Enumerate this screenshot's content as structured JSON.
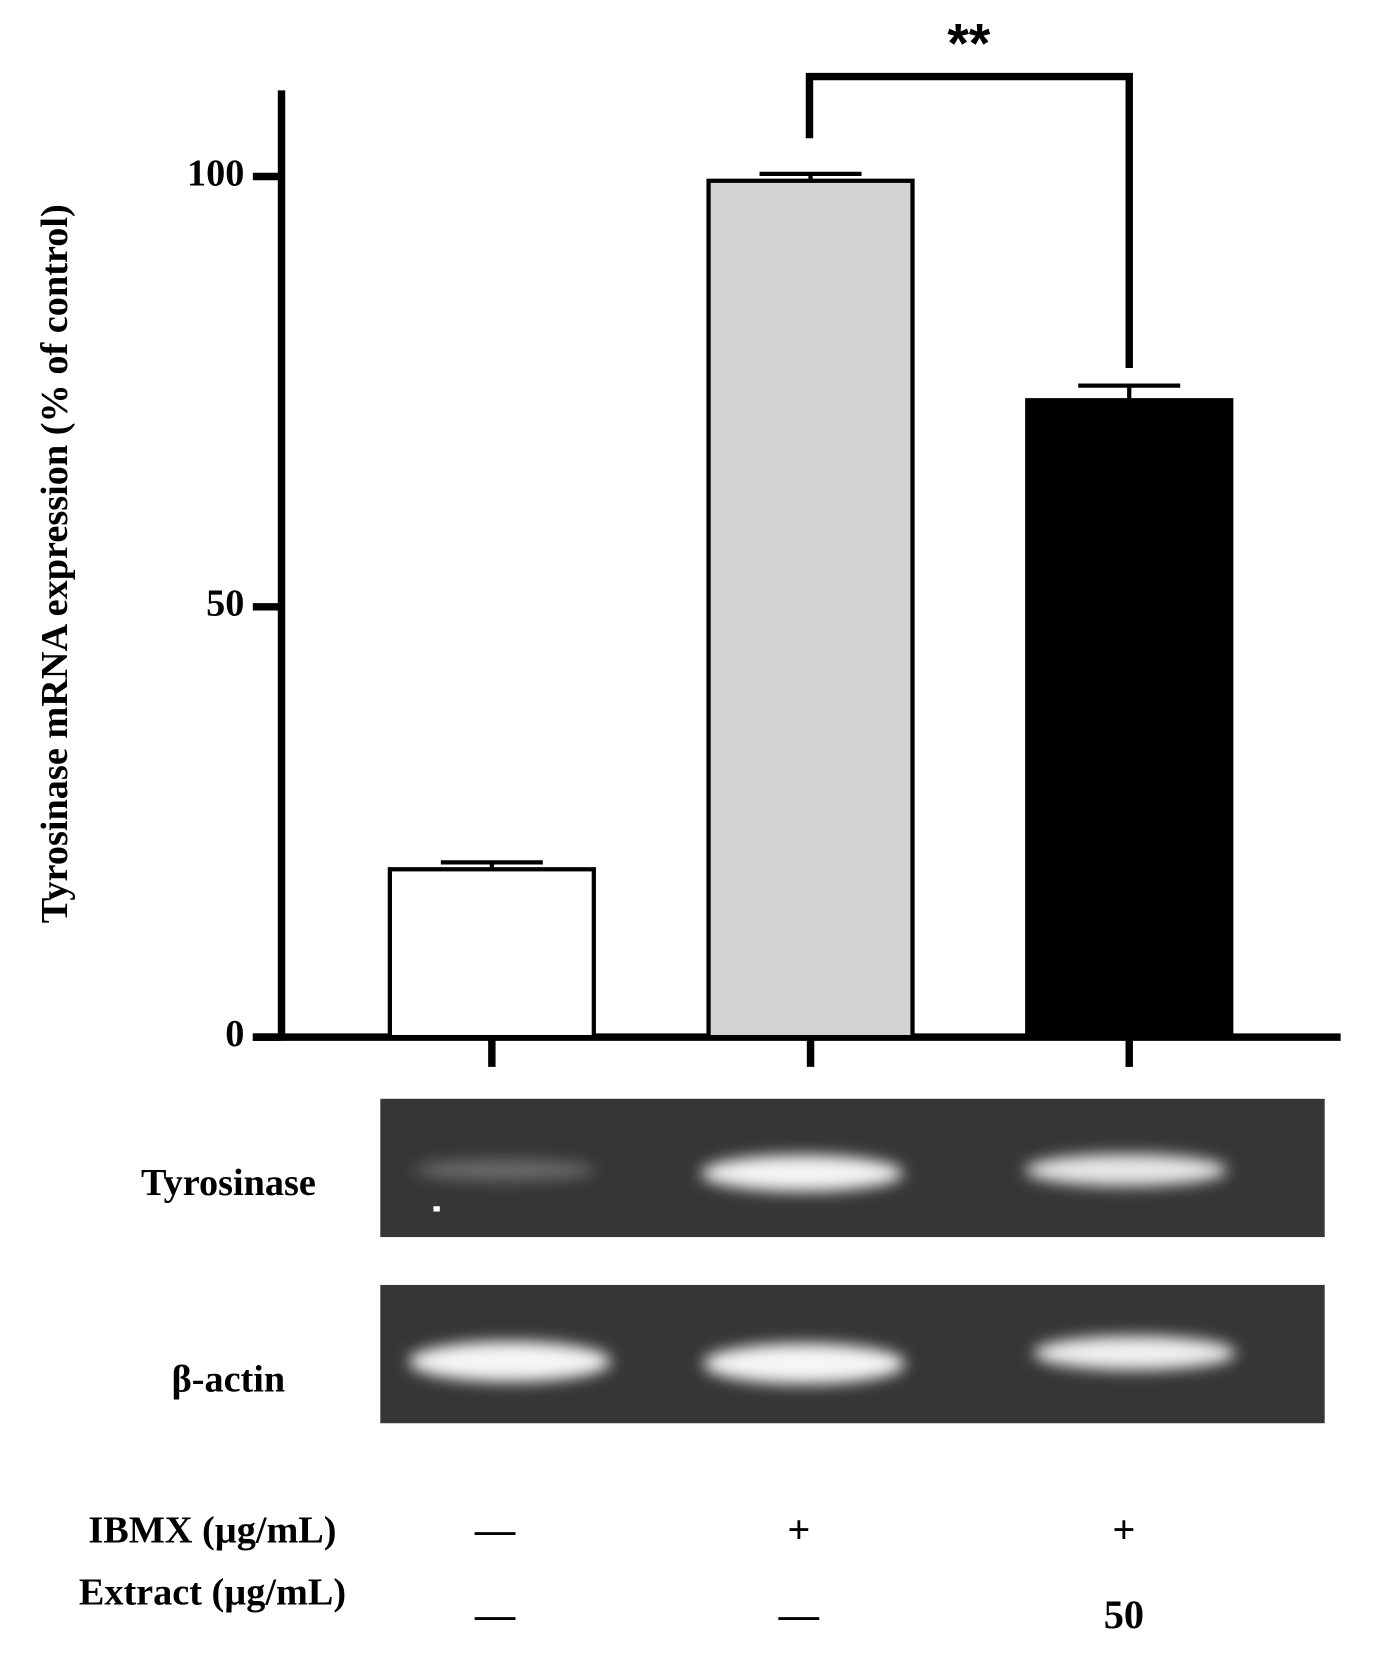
{
  "chart_data": {
    "type": "bar",
    "y_label": "Tyrosinase mRNA expression (% of control)",
    "categories": [
      null,
      null,
      null
    ],
    "values": [
      19.5,
      99.5,
      74
    ],
    "errors": [
      0.8,
      0.8,
      1.7
    ],
    "colors": [
      "#ffffff",
      "#d3d3d3",
      "#000000"
    ],
    "ylim": [
      0,
      110
    ],
    "yticks": [
      0,
      50,
      100
    ],
    "annotation": "**",
    "gel_labels": [
      "Tyrosinase",
      "β-actin"
    ],
    "conditions": [
      {
        "label": "IBMX (µg/mL)",
        "values": [
          "—",
          "+",
          "+"
        ]
      },
      {
        "label": "Extract (µg/mL)",
        "values": [
          "—",
          "—",
          "50"
        ]
      }
    ]
  }
}
